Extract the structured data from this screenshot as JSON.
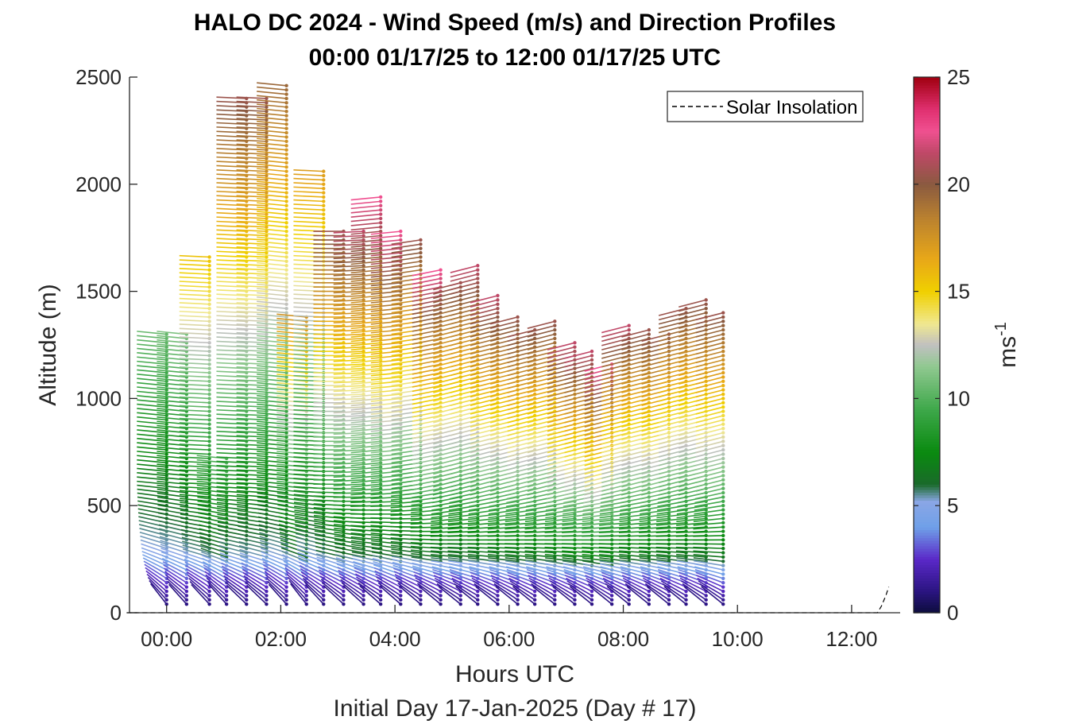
{
  "chart_data": {
    "type": "wind-barb-profile",
    "title_line1": "HALO DC 2024 - Wind Speed (m/s) and Direction Profiles",
    "title_line2": "00:00 01/17/25 to 12:00 01/17/25  UTC",
    "xlabel": "Hours UTC",
    "xlabel2": "Initial Day 17-Jan-2025 (Day # 17)",
    "ylabel": "Altitude (m)",
    "colorbar_label": "ms",
    "colorbar_label_sup": "-1",
    "xlim_hours": [
      -0.65,
      12.85
    ],
    "ylim": [
      0,
      2500
    ],
    "xticks": [
      {
        "value": 0,
        "label": "00:00"
      },
      {
        "value": 2,
        "label": "02:00"
      },
      {
        "value": 4,
        "label": "04:00"
      },
      {
        "value": 6,
        "label": "06:00"
      },
      {
        "value": 8,
        "label": "08:00"
      },
      {
        "value": 10,
        "label": "10:00"
      },
      {
        "value": 12,
        "label": "12:00"
      }
    ],
    "yticks": [
      {
        "value": 0,
        "label": "0"
      },
      {
        "value": 500,
        "label": "500"
      },
      {
        "value": 1000,
        "label": "1000"
      },
      {
        "value": 1500,
        "label": "1500"
      },
      {
        "value": 2000,
        "label": "2000"
      },
      {
        "value": 2500,
        "label": "2500"
      }
    ],
    "colorbar_ticks": [
      {
        "value": 0,
        "label": "0"
      },
      {
        "value": 5,
        "label": "5"
      },
      {
        "value": 10,
        "label": "10"
      },
      {
        "value": 15,
        "label": "15"
      },
      {
        "value": 20,
        "label": "20"
      },
      {
        "value": 25,
        "label": "25"
      }
    ],
    "colorbar_range": [
      0,
      25
    ],
    "colormap": [
      {
        "v": 0,
        "c": "#0c0c3c"
      },
      {
        "v": 1,
        "c": "#2a1480"
      },
      {
        "v": 2.5,
        "c": "#5a28c8"
      },
      {
        "v": 4,
        "c": "#6fa0e8"
      },
      {
        "v": 5.2,
        "c": "#8aa6e6"
      },
      {
        "v": 6,
        "c": "#1a6a2a"
      },
      {
        "v": 7.5,
        "c": "#0a8a10"
      },
      {
        "v": 9.5,
        "c": "#3ea84a"
      },
      {
        "v": 11.5,
        "c": "#90c890"
      },
      {
        "v": 12.5,
        "c": "#c0c0c0"
      },
      {
        "v": 13.5,
        "c": "#f0e890"
      },
      {
        "v": 15,
        "c": "#f0d000"
      },
      {
        "v": 16.5,
        "c": "#e8a818"
      },
      {
        "v": 18.5,
        "c": "#b88030"
      },
      {
        "v": 20,
        "c": "#8a5a40"
      },
      {
        "v": 21.5,
        "c": "#c04868"
      },
      {
        "v": 22.5,
        "c": "#f05090"
      },
      {
        "v": 23.5,
        "c": "#e03070"
      },
      {
        "v": 25,
        "c": "#a00010"
      }
    ],
    "legend": {
      "entries": [
        "Solar Insolation"
      ],
      "position": "top-right",
      "line_style": "dashed"
    },
    "solar_insolation": [
      [
        -0.7,
        0
      ],
      [
        12.45,
        0
      ],
      [
        12.52,
        30
      ],
      [
        12.6,
        80
      ],
      [
        12.65,
        120
      ]
    ],
    "profiles": [
      {
        "time": 0.0,
        "top": 1300,
        "step": 20,
        "speed_surface": 0.5,
        "speed_top": 10.5,
        "dir_surface": 20,
        "dir_top": 80
      },
      {
        "time": 0.35,
        "top": 1300,
        "step": 20,
        "speed_surface": 0.5,
        "speed_top": 11.0,
        "dir_surface": 25,
        "dir_top": 80
      },
      {
        "time": 0.75,
        "top": 1660,
        "step": 20,
        "speed_surface": 0.5,
        "speed_top": 15.5,
        "dir_surface": 25,
        "dir_top": 85
      },
      {
        "time": 1.05,
        "top": 720,
        "step": 20,
        "speed_surface": 0.5,
        "speed_top": 10.0,
        "dir_surface": 25,
        "dir_top": 80
      },
      {
        "time": 1.4,
        "top": 2400,
        "step": 20,
        "speed_surface": 0.5,
        "speed_top": 20.5,
        "dir_surface": 30,
        "dir_top": 85
      },
      {
        "time": 1.75,
        "top": 2400,
        "step": 20,
        "speed_surface": 0.5,
        "speed_top": 20.5,
        "dir_surface": 30,
        "dir_top": 85
      },
      {
        "time": 2.1,
        "top": 2470,
        "step": 20,
        "speed_surface": 0.5,
        "speed_top": 19.5,
        "dir_surface": 25,
        "dir_top": 80
      },
      {
        "time": 2.45,
        "top": 1380,
        "step": 20,
        "speed_surface": 0.5,
        "speed_top": 17.5,
        "dir_surface": 20,
        "dir_top": 80
      },
      {
        "time": 2.75,
        "top": 2060,
        "step": 20,
        "speed_surface": 0.5,
        "speed_top": 17.0,
        "dir_surface": 25,
        "dir_top": 85
      },
      {
        "time": 3.1,
        "top": 1780,
        "step": 20,
        "speed_surface": 0.5,
        "speed_top": 20.5,
        "dir_surface": 30,
        "dir_top": 90
      },
      {
        "time": 3.45,
        "top": 1780,
        "step": 20,
        "speed_surface": 0.5,
        "speed_top": 21.5,
        "dir_surface": 30,
        "dir_top": 95
      },
      {
        "time": 3.75,
        "top": 1940,
        "step": 20,
        "speed_surface": 0.5,
        "speed_top": 22.5,
        "dir_surface": 30,
        "dir_top": 100
      },
      {
        "time": 4.1,
        "top": 1780,
        "step": 20,
        "speed_surface": 0.5,
        "speed_top": 22.5,
        "dir_surface": 30,
        "dir_top": 100
      },
      {
        "time": 4.45,
        "top": 1740,
        "step": 20,
        "speed_surface": 0.5,
        "speed_top": 20.5,
        "dir_surface": 30,
        "dir_top": 105
      },
      {
        "time": 4.8,
        "top": 1600,
        "step": 20,
        "speed_surface": 0.5,
        "speed_top": 22.5,
        "dir_surface": 30,
        "dir_top": 110
      },
      {
        "time": 5.15,
        "top": 1540,
        "step": 20,
        "speed_surface": 0.5,
        "speed_top": 20.5,
        "dir_surface": 30,
        "dir_top": 115
      },
      {
        "time": 5.45,
        "top": 1620,
        "step": 20,
        "speed_surface": 0.5,
        "speed_top": 21.5,
        "dir_surface": 30,
        "dir_top": 115
      },
      {
        "time": 5.8,
        "top": 1480,
        "step": 20,
        "speed_surface": 0.5,
        "speed_top": 21.5,
        "dir_surface": 30,
        "dir_top": 115
      },
      {
        "time": 6.15,
        "top": 1380,
        "step": 20,
        "speed_surface": 0.5,
        "speed_top": 20.5,
        "dir_surface": 30,
        "dir_top": 115
      },
      {
        "time": 6.45,
        "top": 1320,
        "step": 20,
        "speed_surface": 0.5,
        "speed_top": 20.5,
        "dir_surface": 30,
        "dir_top": 115
      },
      {
        "time": 6.8,
        "top": 1360,
        "step": 20,
        "speed_surface": 0.5,
        "speed_top": 20.5,
        "dir_surface": 30,
        "dir_top": 115
      },
      {
        "time": 7.15,
        "top": 1260,
        "step": 20,
        "speed_surface": 0.5,
        "speed_top": 21.5,
        "dir_surface": 30,
        "dir_top": 115
      },
      {
        "time": 7.45,
        "top": 1220,
        "step": 20,
        "speed_surface": 0.5,
        "speed_top": 21.5,
        "dir_surface": 30,
        "dir_top": 115
      },
      {
        "time": 7.8,
        "top": 1160,
        "step": 20,
        "speed_surface": 0.5,
        "speed_top": 22.5,
        "dir_surface": 30,
        "dir_top": 115
      },
      {
        "time": 8.1,
        "top": 1340,
        "step": 20,
        "speed_surface": 0.5,
        "speed_top": 21.5,
        "dir_surface": 30,
        "dir_top": 115
      },
      {
        "time": 8.45,
        "top": 1320,
        "step": 20,
        "speed_surface": 0.5,
        "speed_top": 20.5,
        "dir_surface": 30,
        "dir_top": 115
      },
      {
        "time": 8.8,
        "top": 1300,
        "step": 20,
        "speed_surface": 0.5,
        "speed_top": 20.5,
        "dir_surface": 30,
        "dir_top": 115
      },
      {
        "time": 9.1,
        "top": 1420,
        "step": 20,
        "speed_surface": 0.5,
        "speed_top": 20.5,
        "dir_surface": 30,
        "dir_top": 115
      },
      {
        "time": 9.45,
        "top": 1460,
        "step": 20,
        "speed_surface": 0.5,
        "speed_top": 20.5,
        "dir_surface": 30,
        "dir_top": 115
      },
      {
        "time": 9.75,
        "top": 1400,
        "step": 20,
        "speed_surface": 0.5,
        "speed_top": 20.5,
        "dir_surface": 30,
        "dir_top": 115
      }
    ]
  }
}
